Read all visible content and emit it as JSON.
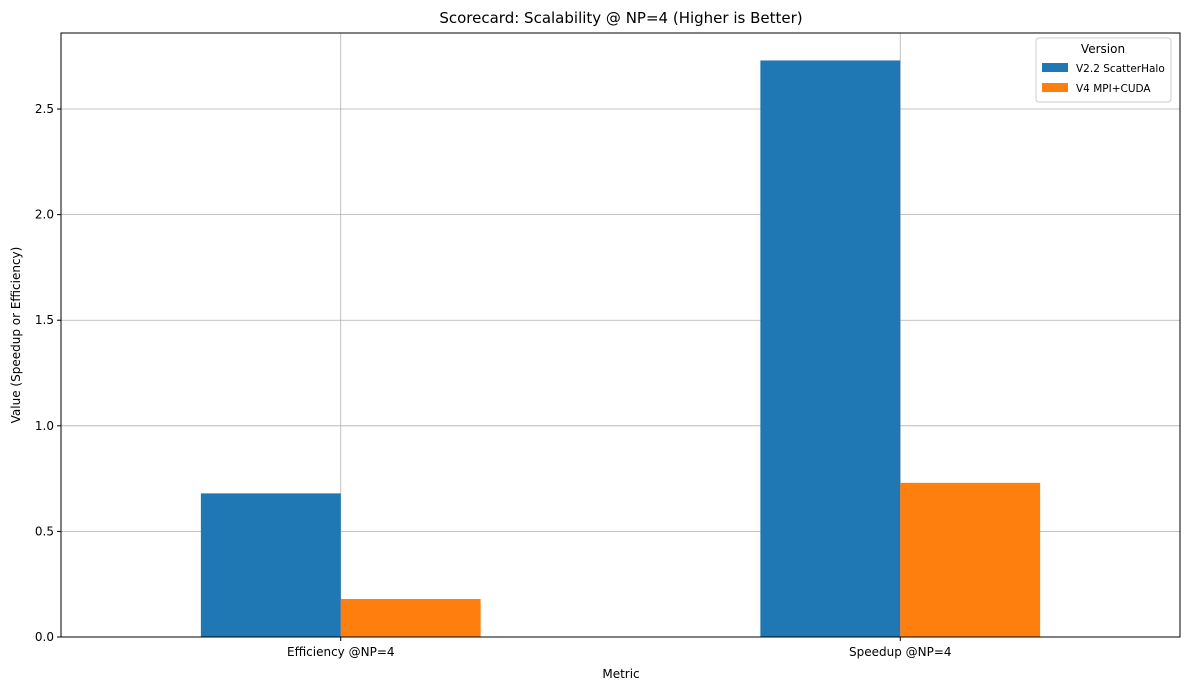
{
  "chart_data": {
    "type": "bar",
    "title": "Scorecard: Scalability @ NP=4 (Higher is Better)",
    "xlabel": "Metric",
    "ylabel": "Value (Speedup or Efficiency)",
    "categories": [
      "Efficiency @NP=4",
      "Speedup @NP=4"
    ],
    "series": [
      {
        "name": "V2.2 ScatterHalo",
        "values": [
          0.68,
          2.73
        ],
        "color": "#1f77b4"
      },
      {
        "name": "V4 MPI+CUDA",
        "values": [
          0.18,
          0.73
        ],
        "color": "#ff7f0e"
      }
    ],
    "ylim": [
      0,
      2.86
    ],
    "yticks": [
      0.0,
      0.5,
      1.0,
      1.5,
      2.0,
      2.5
    ],
    "ytick_labels": [
      "0.0",
      "0.5",
      "1.0",
      "1.5",
      "2.0",
      "2.5"
    ],
    "grid": true,
    "legend": {
      "title": "Version",
      "position": "top-right"
    }
  }
}
